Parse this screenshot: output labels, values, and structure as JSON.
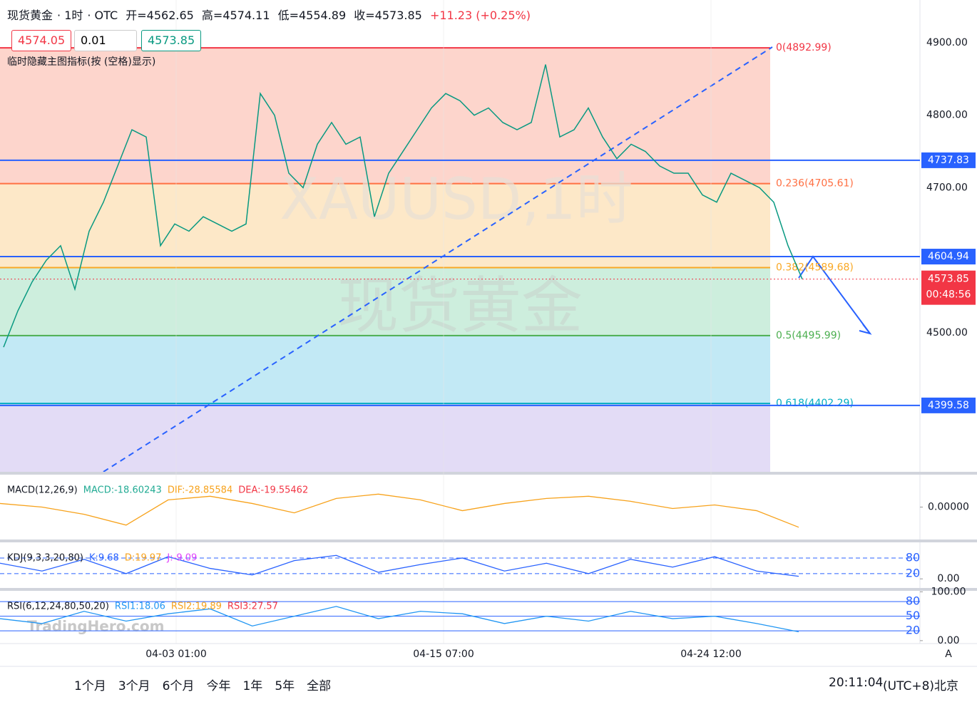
{
  "header": {
    "symbol": "现货黄金",
    "interval": "1时",
    "market": "OTC",
    "open": "开=4562.65",
    "high": "高=4574.11",
    "low": "低=4554.89",
    "close": "收=4573.85",
    "change": "+11.23 (+0.25%)",
    "sell": "4574.05",
    "spread": "0.01",
    "buy": "4573.85",
    "hint": "临时隐藏主图指标(按 (空格)显示)",
    "watermark_1": "XAUUSD,1时",
    "watermark_2": "现货黄金",
    "brand": "TradingHero.com"
  },
  "chart_data": {
    "type": "line",
    "color": "#089981",
    "values": [
      4480,
      4530,
      4570,
      4600,
      4620,
      4560,
      4640,
      4680,
      4730,
      4780,
      4770,
      4620,
      4650,
      4640,
      4660,
      4650,
      4640,
      4650,
      4830,
      4800,
      4720,
      4700,
      4760,
      4790,
      4760,
      4770,
      4660,
      4720,
      4750,
      4780,
      4810,
      4830,
      4820,
      4800,
      4810,
      4790,
      4780,
      4790,
      4870,
      4770,
      4780,
      4810,
      4770,
      4740,
      4760,
      4750,
      4730,
      4720,
      4720,
      4690,
      4680,
      4720,
      4710,
      4700,
      4680,
      4620,
      4573.85
    ],
    "ylim": [
      4308,
      4959
    ],
    "yticks": [
      {
        "value": 4900,
        "label": "4900.00"
      },
      {
        "value": 4800,
        "label": "4800.00"
      },
      {
        "value": 4700,
        "label": "4700.00"
      },
      {
        "value": 4500,
        "label": "4500.00"
      }
    ],
    "x_labels": [
      "04-03 01:00",
      "04-15 07:00",
      "04-24 12:00"
    ],
    "levels": [
      {
        "value": 4737.83,
        "label": "4737.83"
      },
      {
        "value": 4604.94,
        "label": "4604.94"
      },
      {
        "value": 4399.58,
        "label": "4399.58"
      }
    ],
    "level_color": "#2962ff",
    "current": {
      "value": 4573.85,
      "label": "4573.85",
      "countdown": "00:48:56",
      "color": "#f23645"
    },
    "fib": [
      {
        "value": 4892.99,
        "label": "0(4892.99)",
        "color": "#f23645",
        "fill": "#fdd5cc"
      },
      {
        "value": 4705.61,
        "label": "0.236(4705.61)",
        "color": "#ff7043",
        "fill": "#fde8c8"
      },
      {
        "value": 4589.68,
        "label": "0.382(4589.68)",
        "color": "#f9a825",
        "fill": "#cdeedd"
      },
      {
        "value": 4495.99,
        "label": "0.5(4495.99)",
        "color": "#4caf50",
        "fill": "#c2e9f5"
      },
      {
        "value": 4402.29,
        "label": "0.618(4402.29)",
        "color": "#00acc1",
        "fill": "#e3dcf6"
      }
    ]
  },
  "macd": {
    "title": "MACD(12,26,9)",
    "macd": "MACD:-18.60243",
    "dif": "DIF:-28.85584",
    "dea": "DEA:-19.55462",
    "ylim": [
      -45,
      45
    ],
    "yticks": [
      {
        "value": 0,
        "label": "0.00000"
      }
    ],
    "values": [
      5,
      0,
      -10,
      -25,
      10,
      15,
      5,
      -8,
      12,
      18,
      10,
      -5,
      5,
      12,
      15,
      8,
      -2,
      3,
      -5,
      -28
    ]
  },
  "kdj": {
    "title": "KDJ(9,3,3,20,80)",
    "k": "K:9.68",
    "d": "D:19.97",
    "j": "J:-9.09",
    "ylim": [
      -35,
      140
    ],
    "yticks": [
      80,
      20,
      {
        "value": 0,
        "label": "0.00"
      }
    ],
    "values": [
      60,
      30,
      75,
      20,
      85,
      40,
      15,
      70,
      90,
      25,
      55,
      80,
      30,
      60,
      20,
      75,
      45,
      85,
      30,
      9.68
    ]
  },
  "rsi": {
    "title": "RSI(6,12,24,80,50,20)",
    "rsi1": "RSI1:18.06",
    "rsi2": "RSI2:19.89",
    "rsi3": "RSI3:27.57",
    "ylim": [
      -6,
      102
    ],
    "yticks": [
      {
        "value": 100,
        "label": "100.00"
      },
      80,
      50,
      20,
      {
        "value": 0,
        "label": "0.00"
      }
    ],
    "values": [
      45,
      35,
      60,
      40,
      55,
      65,
      30,
      50,
      70,
      45,
      60,
      55,
      35,
      50,
      40,
      60,
      45,
      50,
      35,
      18.06
    ]
  },
  "toolbar": {
    "ranges": [
      "1个月",
      "3个月",
      "6个月",
      "今年",
      "1年",
      "5年",
      "全部"
    ],
    "time": "20:11:04",
    "timezone": "(UTC+8)北京"
  }
}
